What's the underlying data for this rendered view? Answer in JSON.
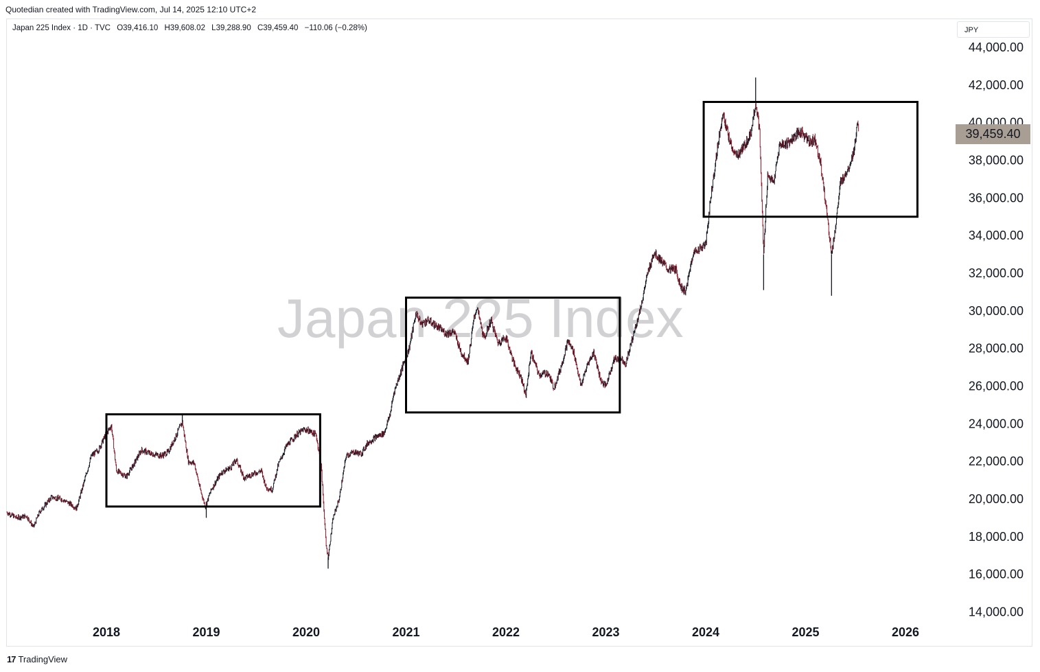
{
  "header": {
    "created_text": "Quotedian created with TradingView.com, Jul 14, 2025 12:10 UTC+2"
  },
  "legend": {
    "symbol": "Japan 225 Index · 1D · TVC",
    "open": "O39,416.10",
    "high": "H39,608.02",
    "low": "L39,288.90",
    "close": "C39,459.40",
    "change": "−110.06 (−0.28%)"
  },
  "currency": "JPY",
  "watermark": "Japan 225 Index",
  "last_price_label": "39,459.40",
  "footer": {
    "brand": "TradingView",
    "logo_text": "17"
  },
  "colors": {
    "up": "#131722",
    "down": "#8b1a2b",
    "box": "#000000",
    "price_tag": "#a99e93"
  },
  "chart_data": {
    "type": "candlestick",
    "symbol": "Japan 225 Index",
    "interval": "1D",
    "x_tick_labels": [
      "2018",
      "2019",
      "2020",
      "2021",
      "2022",
      "2023",
      "2024",
      "2025",
      "2026"
    ],
    "y_tick_labels": [
      "44,000.00",
      "42,000.00",
      "40,000.00",
      "38,000.00",
      "36,000.00",
      "34,000.00",
      "32,000.00",
      "30,000.00",
      "28,000.00",
      "26,000.00",
      "24,000.00",
      "22,000.00",
      "20,000.00",
      "18,000.00",
      "16,000.00",
      "14,000.00"
    ],
    "ylim": [
      13200,
      45000
    ],
    "xlim": [
      2017.0,
      2026.5
    ],
    "last_close": 39459.4,
    "series": [
      {
        "name": "Japan 225 Index",
        "points": [
          [
            2017.0,
            19300
          ],
          [
            2017.1,
            19000
          ],
          [
            2017.2,
            19100
          ],
          [
            2017.27,
            18500
          ],
          [
            2017.33,
            19300
          ],
          [
            2017.45,
            20100
          ],
          [
            2017.55,
            20000
          ],
          [
            2017.65,
            19700
          ],
          [
            2017.7,
            19500
          ],
          [
            2017.75,
            20400
          ],
          [
            2017.85,
            22300
          ],
          [
            2017.92,
            22600
          ],
          [
            2018.0,
            23500
          ],
          [
            2018.05,
            23900
          ],
          [
            2018.1,
            21500
          ],
          [
            2018.2,
            21200
          ],
          [
            2018.27,
            21800
          ],
          [
            2018.35,
            22600
          ],
          [
            2018.45,
            22400
          ],
          [
            2018.55,
            22300
          ],
          [
            2018.62,
            22500
          ],
          [
            2018.7,
            23400
          ],
          [
            2018.76,
            24100
          ],
          [
            2018.82,
            22000
          ],
          [
            2018.88,
            21900
          ],
          [
            2018.94,
            20500
          ],
          [
            2018.99,
            19600
          ],
          [
            2019.05,
            20500
          ],
          [
            2019.15,
            21400
          ],
          [
            2019.25,
            21700
          ],
          [
            2019.3,
            22100
          ],
          [
            2019.38,
            21100
          ],
          [
            2019.45,
            21300
          ],
          [
            2019.55,
            21500
          ],
          [
            2019.6,
            20600
          ],
          [
            2019.66,
            20500
          ],
          [
            2019.72,
            21800
          ],
          [
            2019.8,
            22800
          ],
          [
            2019.9,
            23400
          ],
          [
            2019.98,
            23700
          ],
          [
            2020.04,
            23600
          ],
          [
            2020.1,
            23400
          ],
          [
            2020.15,
            21800
          ],
          [
            2020.2,
            17500
          ],
          [
            2020.22,
            16900
          ],
          [
            2020.27,
            19000
          ],
          [
            2020.33,
            20000
          ],
          [
            2020.4,
            22300
          ],
          [
            2020.48,
            22500
          ],
          [
            2020.55,
            22400
          ],
          [
            2020.62,
            23000
          ],
          [
            2020.7,
            23300
          ],
          [
            2020.78,
            23500
          ],
          [
            2020.84,
            24500
          ],
          [
            2020.88,
            25700
          ],
          [
            2020.95,
            26800
          ],
          [
            2021.03,
            28000
          ],
          [
            2021.1,
            29900
          ],
          [
            2021.15,
            29300
          ],
          [
            2021.22,
            29500
          ],
          [
            2021.3,
            29200
          ],
          [
            2021.4,
            28800
          ],
          [
            2021.48,
            28900
          ],
          [
            2021.55,
            27800
          ],
          [
            2021.62,
            27300
          ],
          [
            2021.68,
            29600
          ],
          [
            2021.71,
            30200
          ],
          [
            2021.78,
            28500
          ],
          [
            2021.85,
            29500
          ],
          [
            2021.92,
            28300
          ],
          [
            2022.0,
            28600
          ],
          [
            2022.08,
            27200
          ],
          [
            2022.15,
            26500
          ],
          [
            2022.2,
            25500
          ],
          [
            2022.25,
            27800
          ],
          [
            2022.33,
            26600
          ],
          [
            2022.42,
            26700
          ],
          [
            2022.48,
            25900
          ],
          [
            2022.55,
            27000
          ],
          [
            2022.62,
            28400
          ],
          [
            2022.68,
            27800
          ],
          [
            2022.75,
            26000
          ],
          [
            2022.82,
            27200
          ],
          [
            2022.88,
            27800
          ],
          [
            2022.95,
            26300
          ],
          [
            2023.0,
            26000
          ],
          [
            2023.08,
            27400
          ],
          [
            2023.15,
            27500
          ],
          [
            2023.2,
            27200
          ],
          [
            2023.27,
            28600
          ],
          [
            2023.35,
            30200
          ],
          [
            2023.42,
            32000
          ],
          [
            2023.48,
            33100
          ],
          [
            2023.55,
            32700
          ],
          [
            2023.62,
            32200
          ],
          [
            2023.7,
            32200
          ],
          [
            2023.75,
            31300
          ],
          [
            2023.8,
            31000
          ],
          [
            2023.87,
            33000
          ],
          [
            2023.93,
            33300
          ],
          [
            2024.0,
            33500
          ],
          [
            2024.05,
            36000
          ],
          [
            2024.1,
            38000
          ],
          [
            2024.17,
            40500
          ],
          [
            2024.24,
            39000
          ],
          [
            2024.3,
            38200
          ],
          [
            2024.37,
            38600
          ],
          [
            2024.45,
            39400
          ],
          [
            2024.5,
            41100
          ],
          [
            2024.54,
            39500
          ],
          [
            2024.58,
            33000
          ],
          [
            2024.62,
            37200
          ],
          [
            2024.68,
            36800
          ],
          [
            2024.74,
            38800
          ],
          [
            2024.82,
            38900
          ],
          [
            2024.9,
            39300
          ],
          [
            2024.96,
            39500
          ],
          [
            2025.03,
            39000
          ],
          [
            2025.1,
            39100
          ],
          [
            2025.15,
            37800
          ],
          [
            2025.2,
            35800
          ],
          [
            2025.26,
            33000
          ],
          [
            2025.3,
            34500
          ],
          [
            2025.35,
            36800
          ],
          [
            2025.42,
            37500
          ],
          [
            2025.48,
            38400
          ],
          [
            2025.52,
            39900
          ],
          [
            2025.53,
            39459.4
          ]
        ]
      }
    ],
    "annotations": [
      {
        "type": "rectangle",
        "x_start": 2018.0,
        "x_end": 2020.14,
        "y_low": 19600,
        "y_high": 24500
      },
      {
        "type": "rectangle",
        "x_start": 2021.0,
        "x_end": 2023.14,
        "y_low": 24600,
        "y_high": 30700
      },
      {
        "type": "rectangle",
        "x_start": 2023.98,
        "x_end": 2026.12,
        "y_low": 35000,
        "y_high": 41100
      }
    ]
  }
}
